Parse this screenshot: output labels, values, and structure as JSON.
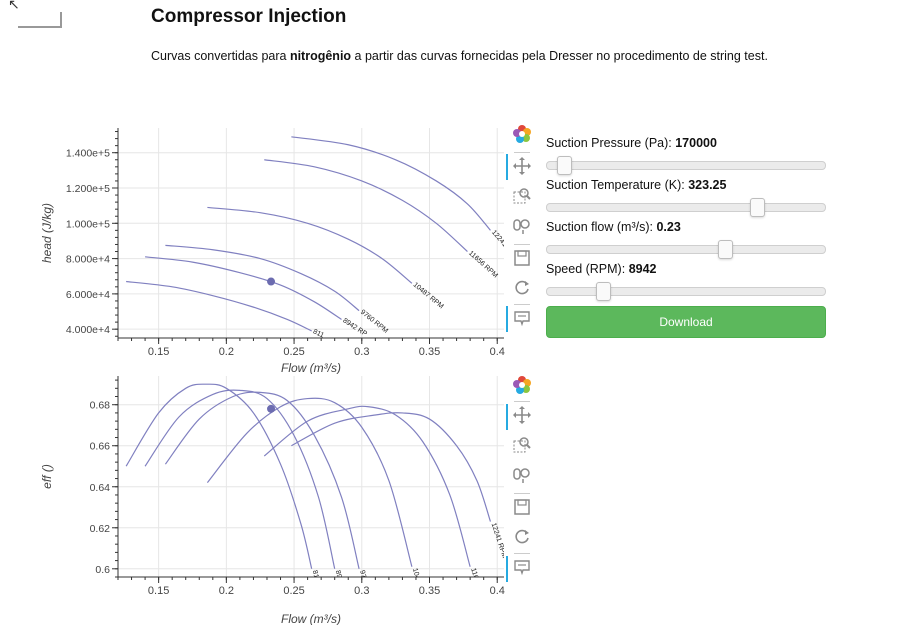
{
  "page": {
    "title": "Compressor Injection",
    "subtitle_before": "Curvas convertidas para ",
    "subtitle_bold": "nitrogênio",
    "subtitle_after": " a partir das curvas fornecidas pela Dresser no procedimento de string test."
  },
  "controls": {
    "sliders": [
      {
        "label": "Suction Pressure (Pa):",
        "value": "170000",
        "position": 0.06
      },
      {
        "label": "Suction Temperature (K):",
        "value": "323.25",
        "position": 0.755
      },
      {
        "label": "Suction flow (m³/s):",
        "value": "0.23",
        "position": 0.64
      },
      {
        "label": "Speed (RPM):",
        "value": "8942",
        "position": 0.2
      }
    ],
    "download_label": "Download"
  },
  "toolbar_icons": [
    "bokeh-logo-icon",
    "pan-icon",
    "box-zoom-icon",
    "wheel-zoom-icon",
    "save-icon",
    "reset-icon",
    "hover-icon"
  ],
  "chart_data": [
    {
      "type": "line",
      "title": "",
      "xlabel": "Flow (m³/s)",
      "ylabel": "head (J/kg)",
      "xlim": [
        0.12,
        0.405
      ],
      "ylim": [
        35000,
        154000
      ],
      "xticks": [
        "0.15",
        "0.2",
        "0.25",
        "0.3",
        "0.35",
        "0.4"
      ],
      "xtick_values": [
        0.15,
        0.2,
        0.25,
        0.3,
        0.35,
        0.4
      ],
      "yticks": [
        "4.000e+4",
        "6.000e+4",
        "8.000e+4",
        "1.000e+5",
        "1.200e+5",
        "1.400e+5"
      ],
      "ytick_values": [
        40000,
        60000,
        80000,
        100000,
        120000,
        140000
      ],
      "grid": true,
      "series": [
        {
          "name": "8111 RPM",
          "label": "811",
          "x": [
            0.126,
            0.16,
            0.19,
            0.22,
            0.245,
            0.263
          ],
          "y": [
            67000,
            64000,
            59000,
            52500,
            45500,
            39000
          ]
        },
        {
          "name": "8942 RPM",
          "label": "8942 RP",
          "x": [
            0.14,
            0.175,
            0.21,
            0.24,
            0.265,
            0.285
          ],
          "y": [
            81000,
            78000,
            72000,
            65000,
            55500,
            45500
          ]
        },
        {
          "name": "9760 RPM",
          "label": "9760 RPM",
          "x": [
            0.155,
            0.19,
            0.225,
            0.255,
            0.28,
            0.298
          ],
          "y": [
            87500,
            85000,
            80000,
            71500,
            61500,
            50500
          ]
        },
        {
          "name": "10487 RPM",
          "label": "10487 RPM",
          "x": [
            0.186,
            0.225,
            0.26,
            0.29,
            0.315,
            0.337
          ],
          "y": [
            109000,
            106000,
            100000,
            91000,
            80000,
            66000
          ]
        },
        {
          "name": "11656 RPM",
          "label": "11656 RPM",
          "x": [
            0.228,
            0.265,
            0.3,
            0.33,
            0.355,
            0.378
          ],
          "y": [
            136000,
            132000,
            124000,
            113000,
            100000,
            84000
          ]
        },
        {
          "name": "12241 RPM",
          "label": "12241 RP",
          "x": [
            0.248,
            0.29,
            0.325,
            0.355,
            0.378,
            0.395
          ],
          "y": [
            149000,
            144500,
            136000,
            124000,
            111000,
            96000
          ]
        }
      ],
      "point": {
        "x": 0.233,
        "y": 67000
      },
      "colors": {
        "line": "#8080c0",
        "point": "#6c6cb0",
        "grid": "#e6e6e6"
      }
    },
    {
      "type": "line",
      "title": "",
      "xlabel": "Flow (m³/s)",
      "ylabel": "eff ()",
      "xlim": [
        0.12,
        0.405
      ],
      "ylim": [
        0.596,
        0.694
      ],
      "xticks": [
        "0.15",
        "0.2",
        "0.25",
        "0.3",
        "0.35",
        "0.4"
      ],
      "xtick_values": [
        0.15,
        0.2,
        0.25,
        0.3,
        0.35,
        0.4
      ],
      "yticks": [
        "0.6",
        "0.62",
        "0.64",
        "0.66",
        "0.68"
      ],
      "ytick_values": [
        0.6,
        0.62,
        0.64,
        0.66,
        0.68
      ],
      "grid": true,
      "series": [
        {
          "name": "8111 RPM",
          "label": "811",
          "x": [
            0.126,
            0.15,
            0.17,
            0.185,
            0.2,
            0.22,
            0.24,
            0.255,
            0.263
          ],
          "y": [
            0.65,
            0.676,
            0.688,
            0.69,
            0.688,
            0.676,
            0.651,
            0.622,
            0.6
          ]
        },
        {
          "name": "8942 RPM",
          "label": "89",
          "x": [
            0.14,
            0.165,
            0.19,
            0.21,
            0.23,
            0.25,
            0.268,
            0.28
          ],
          "y": [
            0.65,
            0.674,
            0.685,
            0.687,
            0.683,
            0.665,
            0.635,
            0.6
          ]
        },
        {
          "name": "9760 RPM",
          "label": "9760",
          "x": [
            0.155,
            0.18,
            0.205,
            0.225,
            0.245,
            0.265,
            0.285,
            0.298
          ],
          "y": [
            0.651,
            0.673,
            0.684,
            0.686,
            0.682,
            0.665,
            0.635,
            0.6
          ]
        },
        {
          "name": "10487 RPM",
          "label": "1048",
          "x": [
            0.186,
            0.215,
            0.24,
            0.26,
            0.28,
            0.3,
            0.32,
            0.337
          ],
          "y": [
            0.642,
            0.666,
            0.679,
            0.683,
            0.681,
            0.669,
            0.643,
            0.601
          ]
        },
        {
          "name": "11656 RPM",
          "label": "11656 RPM",
          "x": [
            0.228,
            0.26,
            0.29,
            0.305,
            0.325,
            0.345,
            0.365,
            0.38
          ],
          "y": [
            0.655,
            0.672,
            0.678,
            0.679,
            0.675,
            0.662,
            0.636,
            0.601
          ]
        },
        {
          "name": "12241 RPM",
          "label": "12241 RPM",
          "x": [
            0.248,
            0.28,
            0.31,
            0.33,
            0.35,
            0.37,
            0.385,
            0.395
          ],
          "y": [
            0.66,
            0.671,
            0.675,
            0.676,
            0.673,
            0.66,
            0.643,
            0.623
          ]
        }
      ],
      "point": {
        "x": 0.233,
        "y": 0.678
      },
      "colors": {
        "line": "#8080c0",
        "point": "#6c6cb0",
        "grid": "#e6e6e6"
      }
    }
  ]
}
